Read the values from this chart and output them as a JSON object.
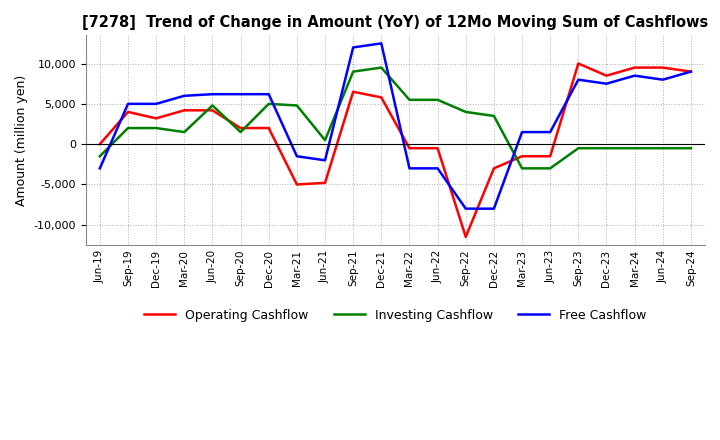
{
  "title": "[7278]  Trend of Change in Amount (YoY) of 12Mo Moving Sum of Cashflows",
  "ylabel": "Amount (million yen)",
  "ylim": [
    -12500,
    13500
  ],
  "yticks": [
    -10000,
    -5000,
    0,
    5000,
    10000
  ],
  "x_labels": [
    "Jun-19",
    "Sep-19",
    "Dec-19",
    "Mar-20",
    "Jun-20",
    "Sep-20",
    "Dec-20",
    "Mar-21",
    "Jun-21",
    "Sep-21",
    "Dec-21",
    "Mar-22",
    "Jun-22",
    "Sep-22",
    "Dec-22",
    "Mar-23",
    "Jun-23",
    "Sep-23",
    "Dec-23",
    "Mar-24",
    "Jun-24",
    "Sep-24"
  ],
  "operating": [
    0,
    4000,
    3200,
    4200,
    4200,
    2000,
    2000,
    -5000,
    -4800,
    6500,
    5800,
    -500,
    -500,
    -11500,
    -3000,
    -1500,
    -1500,
    10000,
    8500,
    9500,
    9500,
    9000
  ],
  "investing": [
    -1500,
    2000,
    2000,
    1500,
    4800,
    1500,
    5000,
    4800,
    500,
    9000,
    9500,
    5500,
    5500,
    4000,
    3500,
    -3000,
    -3000,
    -500,
    -500,
    -500,
    -500,
    -500
  ],
  "free": [
    -3000,
    5000,
    5000,
    6000,
    6200,
    6200,
    6200,
    -1500,
    -2000,
    12000,
    12500,
    -3000,
    -3000,
    -8000,
    -8000,
    1500,
    1500,
    8000,
    7500,
    8500,
    8000,
    9000
  ],
  "operating_color": "#ff0000",
  "investing_color": "#008000",
  "free_color": "#0000ff",
  "background_color": "#ffffff",
  "grid_color": "#b0b0b0"
}
